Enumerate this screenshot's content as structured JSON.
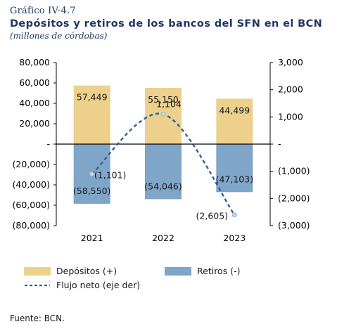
{
  "header": {
    "figure_number": "Gráfico IV-4.7",
    "title": "Depósitos y retiros de los bancos del SFN en el BCN",
    "subtitle": "(millones de córdobas)"
  },
  "chart_data": {
    "type": "bar",
    "categories": [
      "2021",
      "2022",
      "2023"
    ],
    "series": [
      {
        "name": "Depósitos (+)",
        "values": [
          57449,
          55150,
          44499
        ],
        "labels": [
          "57,449",
          "55,150",
          "44,499"
        ],
        "color": "#ecd08c",
        "axis": "left"
      },
      {
        "name": "Retiros (-)",
        "values": [
          -58550,
          -54046,
          -47103
        ],
        "labels": [
          "(58,550)",
          "(54,046)",
          "(47,103)"
        ],
        "color": "#7fa5c8",
        "axis": "left"
      },
      {
        "name": "Flujo neto (eje der)",
        "type": "line",
        "values": [
          -1101,
          1104,
          -2605
        ],
        "labels": [
          "(1,101)",
          "1,104",
          "(2,605)"
        ],
        "color": "#2e5f99",
        "axis": "right",
        "style": "dashed"
      }
    ],
    "y_left": {
      "ylim": [
        -80000,
        80000
      ],
      "ticks": [
        80000,
        60000,
        40000,
        20000,
        0,
        -20000,
        -40000,
        -60000,
        -80000
      ],
      "tick_labels": [
        "80,000",
        "60,000",
        "40,000",
        "20,000",
        "-",
        "(20,000)",
        "(40,000)",
        "(60,000)",
        "(80,000)"
      ]
    },
    "y_right": {
      "ylim": [
        -3000,
        3000
      ],
      "ticks": [
        3000,
        2000,
        1000,
        0,
        -1000,
        -2000,
        -3000
      ],
      "tick_labels": [
        "3,000",
        "2,000",
        "1,000",
        "-",
        "(1,000)",
        "(2,000)",
        "(3,000)"
      ]
    },
    "legend": "bottom",
    "grid": false
  },
  "legend": {
    "items": [
      "Depósitos (+)",
      "Retiros (-)",
      "Flujo neto (eje der)"
    ]
  },
  "source": "Fuente: BCN."
}
